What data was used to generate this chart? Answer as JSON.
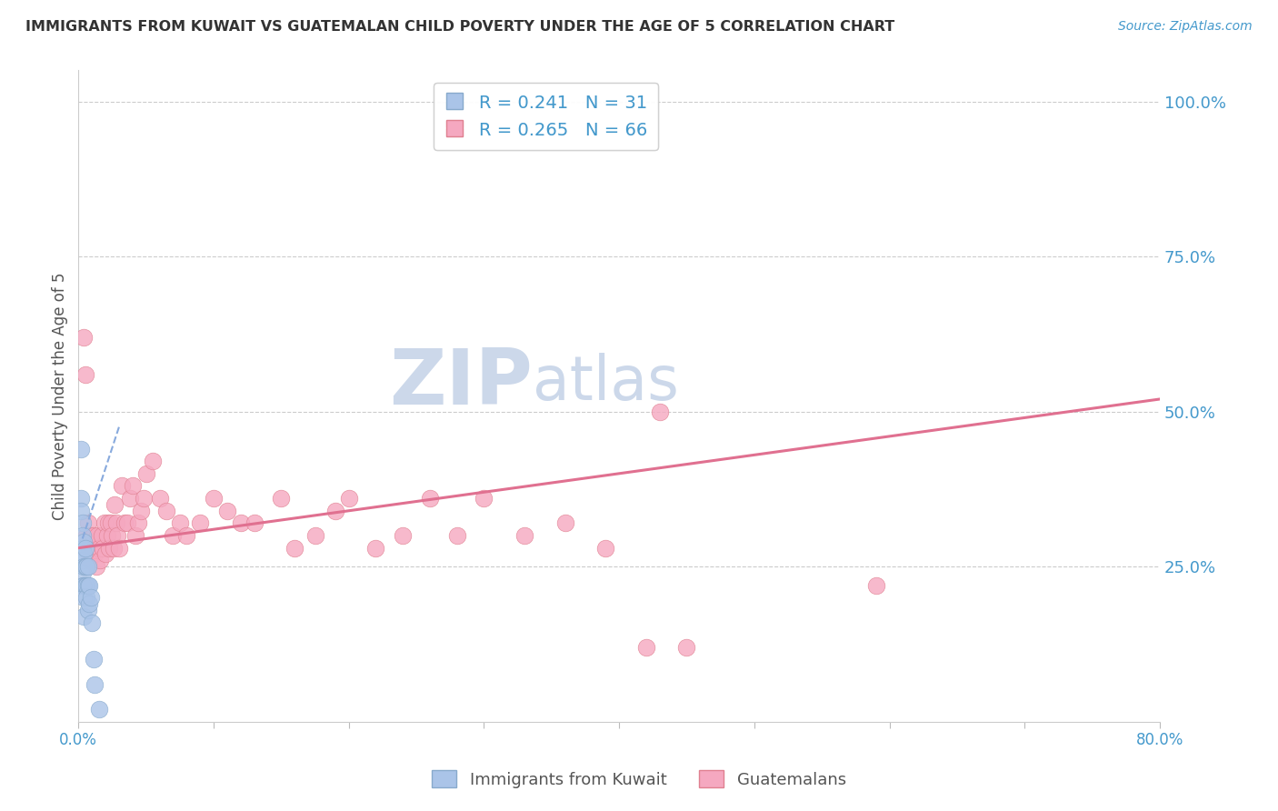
{
  "title": "IMMIGRANTS FROM KUWAIT VS GUATEMALAN CHILD POVERTY UNDER THE AGE OF 5 CORRELATION CHART",
  "source": "Source: ZipAtlas.com",
  "ylabel": "Child Poverty Under the Age of 5",
  "r_kuwait": 0.241,
  "n_kuwait": 31,
  "r_guatemalan": 0.265,
  "n_guatemalan": 66,
  "xlim": [
    0.0,
    0.8
  ],
  "ylim": [
    0.0,
    1.05
  ],
  "kuwait_color": "#aac4e8",
  "kuwait_edge_color": "#88aacc",
  "guatemalan_color": "#f5a8c0",
  "guatemalan_edge_color": "#e08090",
  "kuwait_line_color": "#88aadd",
  "guatemalan_line_color": "#e07090",
  "grid_color": "#cccccc",
  "title_color": "#333333",
  "axis_label_color": "#555555",
  "tick_color": "#4499cc",
  "background_color": "#ffffff",
  "watermark_zip": "ZIP",
  "watermark_atlas": "atlas",
  "watermark_color_zip": "#c5d5e8",
  "watermark_color_atlas": "#c5d5e8",
  "kuwait_scatter_x": [
    0.002,
    0.002,
    0.002,
    0.003,
    0.003,
    0.003,
    0.003,
    0.003,
    0.003,
    0.004,
    0.004,
    0.004,
    0.004,
    0.004,
    0.004,
    0.005,
    0.005,
    0.005,
    0.006,
    0.006,
    0.006,
    0.007,
    0.007,
    0.007,
    0.008,
    0.008,
    0.009,
    0.01,
    0.011,
    0.012,
    0.015
  ],
  "kuwait_scatter_y": [
    0.44,
    0.36,
    0.34,
    0.32,
    0.3,
    0.28,
    0.26,
    0.24,
    0.22,
    0.29,
    0.27,
    0.25,
    0.22,
    0.2,
    0.17,
    0.28,
    0.25,
    0.22,
    0.25,
    0.22,
    0.2,
    0.25,
    0.22,
    0.18,
    0.22,
    0.19,
    0.2,
    0.16,
    0.1,
    0.06,
    0.02
  ],
  "guatemalan_scatter_x": [
    0.004,
    0.005,
    0.006,
    0.007,
    0.008,
    0.008,
    0.009,
    0.01,
    0.011,
    0.012,
    0.013,
    0.014,
    0.015,
    0.016,
    0.017,
    0.018,
    0.019,
    0.02,
    0.021,
    0.022,
    0.023,
    0.024,
    0.025,
    0.026,
    0.027,
    0.028,
    0.029,
    0.03,
    0.032,
    0.034,
    0.036,
    0.038,
    0.04,
    0.042,
    0.044,
    0.046,
    0.048,
    0.05,
    0.055,
    0.06,
    0.065,
    0.07,
    0.075,
    0.08,
    0.09,
    0.1,
    0.11,
    0.12,
    0.13,
    0.15,
    0.16,
    0.175,
    0.19,
    0.2,
    0.22,
    0.24,
    0.26,
    0.28,
    0.3,
    0.33,
    0.36,
    0.39,
    0.42,
    0.45,
    0.59,
    0.43
  ],
  "guatemalan_scatter_y": [
    0.62,
    0.56,
    0.3,
    0.32,
    0.28,
    0.26,
    0.3,
    0.27,
    0.3,
    0.27,
    0.25,
    0.3,
    0.28,
    0.26,
    0.3,
    0.28,
    0.32,
    0.27,
    0.3,
    0.32,
    0.28,
    0.32,
    0.3,
    0.28,
    0.35,
    0.32,
    0.3,
    0.28,
    0.38,
    0.32,
    0.32,
    0.36,
    0.38,
    0.3,
    0.32,
    0.34,
    0.36,
    0.4,
    0.42,
    0.36,
    0.34,
    0.3,
    0.32,
    0.3,
    0.32,
    0.36,
    0.34,
    0.32,
    0.32,
    0.36,
    0.28,
    0.3,
    0.34,
    0.36,
    0.28,
    0.3,
    0.36,
    0.3,
    0.36,
    0.3,
    0.32,
    0.28,
    0.12,
    0.12,
    0.22,
    0.5
  ],
  "guat_line_x0": 0.0,
  "guat_line_x1": 0.8,
  "guat_line_y0": 0.28,
  "guat_line_y1": 0.52,
  "kuwait_line_x0": 0.003,
  "kuwait_line_x1": 0.03,
  "kuwait_line_y0": 0.295,
  "kuwait_line_y1": 0.475
}
